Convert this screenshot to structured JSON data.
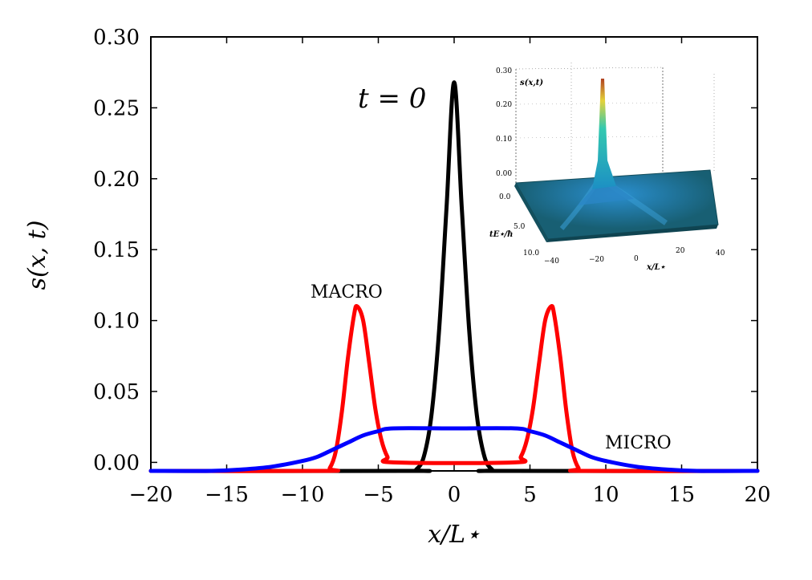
{
  "chart_data": {
    "type": "line",
    "title": "",
    "xlabel": "x/L⋆",
    "ylabel": "s(x, t)",
    "xlim": [
      -20,
      20
    ],
    "ylim": [
      -0.006,
      0.3
    ],
    "xticks": [
      -20,
      -15,
      -10,
      -5,
      0,
      5,
      10,
      15,
      20
    ],
    "xtick_labels": [
      "−20",
      "−15",
      "−10",
      "−5",
      "0",
      "5",
      "10",
      "15",
      "20"
    ],
    "yticks": [
      0.0,
      0.05,
      0.1,
      0.15,
      0.2,
      0.25,
      0.3
    ],
    "ytick_labels": [
      "0.00",
      "0.05",
      "0.10",
      "0.15",
      "0.20",
      "0.25",
      "0.30"
    ],
    "grid": false,
    "series": [
      {
        "name": "t = 0",
        "color": "#000000",
        "x": [
          -20,
          -3,
          -2.5,
          -2,
          -1.5,
          -1,
          -0.5,
          0,
          0.5,
          1,
          1.5,
          2,
          2.5,
          3,
          20
        ],
        "y": [
          -0.006,
          -0.006,
          -0.005,
          0.004,
          0.033,
          0.092,
          0.18,
          0.268,
          0.18,
          0.092,
          0.033,
          0.004,
          -0.005,
          -0.006,
          -0.006
        ]
      },
      {
        "name": "MACRO",
        "color": "#ff0000",
        "x": [
          -20,
          -8.6,
          -8.2,
          -7.8,
          -7.4,
          -7.0,
          -6.6,
          -6.4,
          -6.0,
          -5.6,
          -5.2,
          -4.8,
          -4.4,
          -4.0,
          4.0,
          4.4,
          4.8,
          5.2,
          5.6,
          6.0,
          6.4,
          6.6,
          7.0,
          7.4,
          7.8,
          8.2,
          8.6,
          20
        ],
        "y": [
          -0.006,
          -0.006,
          -0.004,
          0.008,
          0.036,
          0.074,
          0.104,
          0.11,
          0.1,
          0.07,
          0.038,
          0.016,
          0.004,
          0.0,
          0.0,
          0.004,
          0.016,
          0.038,
          0.07,
          0.1,
          0.11,
          0.104,
          0.074,
          0.036,
          0.008,
          -0.004,
          -0.006,
          -0.006
        ]
      },
      {
        "name": "MICRO",
        "color": "#0000ff",
        "x": [
          -20,
          -16,
          -14,
          -12,
          -10,
          -9,
          -8,
          -7,
          -6,
          -5,
          -4,
          0,
          4,
          5,
          6,
          7,
          8,
          9,
          10,
          12,
          14,
          16,
          20
        ],
        "y": [
          -0.006,
          -0.006,
          -0.005,
          -0.003,
          0.001,
          0.004,
          0.009,
          0.014,
          0.019,
          0.022,
          0.024,
          0.024,
          0.024,
          0.022,
          0.019,
          0.014,
          0.009,
          0.004,
          0.001,
          -0.003,
          -0.005,
          -0.006,
          -0.006
        ]
      }
    ],
    "annotations": [
      {
        "text": "t = 0",
        "x": -2.0,
        "y": 0.245
      },
      {
        "text": "MACRO",
        "x": -9.5,
        "y": 0.118
      },
      {
        "text": "MICRO",
        "x": 10.0,
        "y": 0.009
      }
    ],
    "inset": {
      "type": "surface",
      "zlabel": "s(x,t)",
      "xlabel": "x/L⋆",
      "ylabel": "tE⋆/ħ",
      "zticks": [
        "0.30",
        "0.20",
        "0.10",
        "0.00"
      ],
      "yticks": [
        "0.0",
        "5.0",
        "10.0"
      ],
      "xticks": [
        "−40",
        "−20",
        "0",
        "20",
        "40"
      ]
    }
  }
}
